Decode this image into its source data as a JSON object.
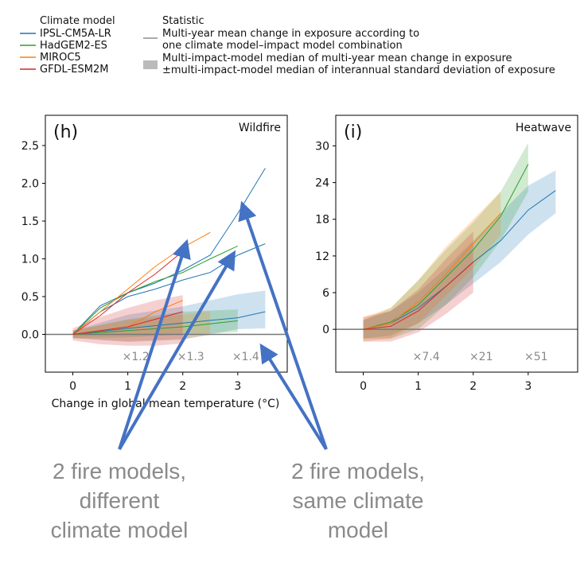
{
  "legend": {
    "model_title": "Climate model",
    "models": [
      {
        "name": "IPSL-CM5A-LR",
        "color": "#1f77b4"
      },
      {
        "name": "HadGEM2-ES",
        "color": "#2ca02c"
      },
      {
        "name": "MIROC5",
        "color": "#ff7f0e"
      },
      {
        "name": "GFDL-ESM2M",
        "color": "#d62728"
      }
    ],
    "stat_title": "Statistic",
    "stat_line_1": "Multi-year mean change in exposure according to",
    "stat_line_2": "one climate model–impact model combination",
    "stat_band_1": "Multi-impact-model median of multi-year mean change in exposure",
    "stat_band_2": "±multi-impact-model median of interannual standard deviation of exposure"
  },
  "xlabel": "Change in global mean temperature (°C)",
  "annotations": {
    "left": [
      "2 fire models,",
      "different",
      "climate model"
    ],
    "right": [
      "2 fire models,",
      "same climate",
      "model"
    ],
    "arrow_color": "#4472c4"
  },
  "chart_data": [
    {
      "type": "line",
      "panel": "(h)",
      "title": "Wildfire",
      "xlim": [
        -0.5,
        3.9
      ],
      "ylim": [
        -0.5,
        2.9
      ],
      "xticks": [
        0,
        1,
        2,
        3
      ],
      "yticks": [
        0.0,
        0.5,
        1.0,
        1.5,
        2.0,
        2.5
      ],
      "ytick_labels": [
        "0.0",
        "0.5",
        "1.0",
        "1.5",
        "2.0",
        "2.5"
      ],
      "multipliers": [
        {
          "x": 1.0,
          "label": "×1.2"
        },
        {
          "x": 2.0,
          "label": "×1.3"
        },
        {
          "x": 3.0,
          "label": "×1.4"
        }
      ],
      "lines": [
        {
          "model": "IPSL-CM5A-LR",
          "x": [
            0,
            0.5,
            1.0,
            1.5,
            2.0,
            2.5,
            3.0,
            3.5
          ],
          "y": [
            0,
            0.38,
            0.55,
            0.68,
            0.85,
            1.05,
            1.6,
            2.2
          ]
        },
        {
          "model": "IPSL-CM5A-LR",
          "x": [
            0,
            0.5,
            1.0,
            1.5,
            2.0,
            2.5,
            3.0,
            3.5
          ],
          "y": [
            0,
            0.3,
            0.5,
            0.6,
            0.72,
            0.82,
            1.05,
            1.2
          ]
        },
        {
          "model": "IPSL-CM5A-LR",
          "x": [
            0,
            1.0,
            2.0,
            3.0,
            3.5
          ],
          "y": [
            0,
            0.08,
            0.15,
            0.22,
            0.3
          ]
        },
        {
          "model": "HadGEM2-ES",
          "x": [
            0,
            0.5,
            1.0,
            1.5,
            2.0,
            2.5,
            3.0
          ],
          "y": [
            0,
            0.35,
            0.55,
            0.7,
            0.82,
            1.0,
            1.17
          ]
        },
        {
          "model": "HadGEM2-ES",
          "x": [
            0,
            1.0,
            2.0,
            3.0
          ],
          "y": [
            0,
            0.05,
            0.1,
            0.18
          ]
        },
        {
          "model": "MIROC5",
          "x": [
            0,
            0.5,
            1.0,
            1.5,
            2.0,
            2.5
          ],
          "y": [
            0,
            0.3,
            0.6,
            0.9,
            1.15,
            1.35
          ]
        },
        {
          "model": "MIROC5",
          "x": [
            0,
            1.0,
            1.5,
            2.0
          ],
          "y": [
            0,
            0.1,
            0.3,
            0.45
          ]
        },
        {
          "model": "GFDL-ESM2M",
          "x": [
            0,
            0.5,
            1.0,
            1.5,
            2.0
          ],
          "y": [
            0,
            0.25,
            0.55,
            0.8,
            1.1
          ]
        },
        {
          "model": "GFDL-ESM2M",
          "x": [
            0,
            1.0,
            2.0
          ],
          "y": [
            0,
            0.1,
            0.3
          ]
        }
      ],
      "bands": [
        {
          "model": "IPSL-CM5A-LR",
          "x": [
            0,
            1.0,
            2.0,
            3.0,
            3.5
          ],
          "mid": [
            0,
            0.08,
            0.15,
            0.3,
            0.33
          ],
          "halfwidth": [
            0.05,
            0.18,
            0.22,
            0.23,
            0.25
          ]
        },
        {
          "model": "HadGEM2-ES",
          "x": [
            0,
            1.0,
            2.0,
            3.0
          ],
          "mid": [
            0,
            0.08,
            0.15,
            0.18
          ],
          "halfwidth": [
            0.05,
            0.12,
            0.15,
            0.15
          ]
        },
        {
          "model": "MIROC5",
          "x": [
            0,
            1.0,
            2.0,
            2.5
          ],
          "mid": [
            0,
            0.05,
            0.1,
            0.15
          ],
          "halfwidth": [
            0.05,
            0.14,
            0.16,
            0.16
          ]
        },
        {
          "model": "GFDL-ESM2M",
          "x": [
            0,
            0.5,
            1.0,
            1.5,
            2.0
          ],
          "mid": [
            0,
            0.05,
            0.1,
            0.15,
            0.2
          ],
          "halfwidth": [
            0.08,
            0.18,
            0.25,
            0.3,
            0.32
          ]
        }
      ]
    },
    {
      "type": "line",
      "panel": "(i)",
      "title": "Heatwave",
      "xlim": [
        -0.5,
        3.9
      ],
      "ylim": [
        -7,
        35
      ],
      "xticks": [
        0,
        1,
        2,
        3
      ],
      "yticks": [
        0,
        6,
        12,
        18,
        24,
        30
      ],
      "ytick_labels": [
        "0",
        "6",
        "12",
        "18",
        "24",
        "30"
      ],
      "multipliers": [
        {
          "x": 1.0,
          "label": "×7.4"
        },
        {
          "x": 2.0,
          "label": "×21"
        },
        {
          "x": 3.0,
          "label": "×51"
        }
      ],
      "lines": [
        {
          "model": "IPSL-CM5A-LR",
          "x": [
            0,
            0.5,
            1.0,
            1.5,
            2.0,
            2.5,
            3.0,
            3.5
          ],
          "y": [
            0,
            1.0,
            3.5,
            7.0,
            11.0,
            14.5,
            19.5,
            22.7
          ]
        },
        {
          "model": "HadGEM2-ES",
          "x": [
            0,
            0.5,
            1.0,
            1.5,
            2.0,
            2.5,
            3.0
          ],
          "y": [
            0,
            1.2,
            4.0,
            8.5,
            13.0,
            18.5,
            27.0
          ]
        },
        {
          "model": "MIROC5",
          "x": [
            0,
            0.5,
            1.0,
            1.5,
            2.0,
            2.5
          ],
          "y": [
            0,
            1.0,
            4.5,
            9.0,
            14.0,
            19.0
          ]
        },
        {
          "model": "GFDL-ESM2M",
          "x": [
            0,
            0.5,
            1.0,
            1.5,
            2.0
          ],
          "y": [
            0,
            0.5,
            3.0,
            7.0,
            11.0
          ]
        }
      ],
      "bands": [
        {
          "model": "IPSL-CM5A-LR",
          "x": [
            0,
            0.5,
            1.0,
            1.5,
            2.0,
            2.5,
            3.0,
            3.5
          ],
          "mid": [
            0,
            1.0,
            3.5,
            7.0,
            11.0,
            15.0,
            19.5,
            22.5
          ],
          "halfwidth": [
            1.5,
            2.0,
            2.5,
            3.0,
            3.5,
            4.0,
            4.0,
            3.5
          ]
        },
        {
          "model": "HadGEM2-ES",
          "x": [
            0,
            0.5,
            1.0,
            1.5,
            2.0,
            2.5,
            3.0
          ],
          "mid": [
            0,
            1.0,
            4.0,
            8.5,
            13.0,
            18.5,
            26.5
          ],
          "halfwidth": [
            1.5,
            2.5,
            4.0,
            4.5,
            4.5,
            4.0,
            4.0
          ]
        },
        {
          "model": "MIROC5",
          "x": [
            0,
            0.5,
            1.0,
            1.5,
            2.0,
            2.5
          ],
          "mid": [
            0,
            1.0,
            4.5,
            9.5,
            14.0,
            19.0
          ],
          "halfwidth": [
            2.0,
            2.5,
            3.5,
            4.0,
            4.0,
            3.5
          ]
        },
        {
          "model": "GFDL-ESM2M",
          "x": [
            0,
            0.5,
            1.0,
            1.5,
            2.0
          ],
          "mid": [
            0,
            0.5,
            3.0,
            7.0,
            11.0
          ],
          "halfwidth": [
            2.0,
            2.5,
            3.5,
            4.5,
            5.0
          ]
        }
      ]
    }
  ]
}
